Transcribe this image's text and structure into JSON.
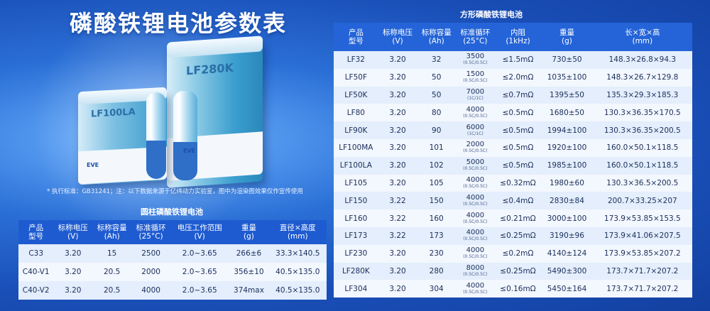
{
  "title": "磷酸铁锂电池参数表",
  "footnote": "* 执行标准：GB31241；注：以下数据来源于亿纬动力实验室，图中为渲染图效果仅作宣传使用",
  "illustration": {
    "big_cell_label": "LF280K",
    "small_cell_label": "LF100LA",
    "brand": "EVE"
  },
  "cylindrical": {
    "title": "圆柱磷酸铁锂电池",
    "headers": [
      [
        "产品",
        "型号"
      ],
      [
        "标称电压",
        "(V)"
      ],
      [
        "标称容量",
        "(Ah)"
      ],
      [
        "标准循环",
        "(25°C)"
      ],
      [
        "电压工作范围",
        "(V)"
      ],
      [
        "重量",
        "(g)"
      ],
      [
        "直径×高度",
        "(mm)"
      ]
    ],
    "rows": [
      [
        "C33",
        "3.20",
        "15",
        "2500",
        "2.0~3.65",
        "266±6",
        "33.3×140.5"
      ],
      [
        "C40-V1",
        "3.20",
        "20.5",
        "2000",
        "2.0~3.65",
        "356±10",
        "40.5×135.0"
      ],
      [
        "C40-V2",
        "3.20",
        "20.5",
        "4000",
        "2.0~3.65",
        "374max",
        "40.5×135.0"
      ]
    ]
  },
  "prismatic": {
    "title": "方形磷酸铁锂电池",
    "headers": [
      [
        "产品",
        "型号"
      ],
      [
        "标称电压",
        "(V)"
      ],
      [
        "标称容量",
        "(Ah)"
      ],
      [
        "标准循环",
        "(25°C)"
      ],
      [
        "内阻",
        "(1kHz)"
      ],
      [
        "重量",
        "(g)"
      ],
      [
        "长×宽×高",
        "(mm)"
      ]
    ],
    "rows": [
      {
        "model": "LF32",
        "voltage": "3.20",
        "capacity": "32",
        "cycle": "3500",
        "cycle_rate": "(0.5C/0.5C)",
        "resistance": "≤1.5mΩ",
        "weight": "730±50",
        "size": "148.3×26.8×94.3"
      },
      {
        "model": "LF50F",
        "voltage": "3.20",
        "capacity": "50",
        "cycle": "1500",
        "cycle_rate": "(0.5C/0.5C)",
        "resistance": "≤2.0mΩ",
        "weight": "1035±100",
        "size": "148.3×26.7×129.8"
      },
      {
        "model": "LF50K",
        "voltage": "3.20",
        "capacity": "50",
        "cycle": "7000",
        "cycle_rate": "(1C/1C)",
        "resistance": "≤0.7mΩ",
        "weight": "1395±50",
        "size": "135.3×29.3×185.3"
      },
      {
        "model": "LF80",
        "voltage": "3.20",
        "capacity": "80",
        "cycle": "4000",
        "cycle_rate": "(0.5C/0.5C)",
        "resistance": "≤0.5mΩ",
        "weight": "1680±50",
        "size": "130.3×36.35×170.5"
      },
      {
        "model": "LF90K",
        "voltage": "3.20",
        "capacity": "90",
        "cycle": "6000",
        "cycle_rate": "(1C/1C)",
        "resistance": "≤0.5mΩ",
        "weight": "1994±100",
        "size": "130.3×36.35×200.5"
      },
      {
        "model": "LF100MA",
        "voltage": "3.20",
        "capacity": "101",
        "cycle": "2000",
        "cycle_rate": "(0.5C/0.5C)",
        "resistance": "≤0.5mΩ",
        "weight": "1920±100",
        "size": "160.0×50.1×118.5"
      },
      {
        "model": "LF100LA",
        "voltage": "3.20",
        "capacity": "102",
        "cycle": "5000",
        "cycle_rate": "(0.5C/0.5C)",
        "resistance": "≤0.5mΩ",
        "weight": "1985±100",
        "size": "160.0×50.1×118.5"
      },
      {
        "model": "LF105",
        "voltage": "3.20",
        "capacity": "105",
        "cycle": "4000",
        "cycle_rate": "(0.5C/0.5C)",
        "resistance": "≤0.32mΩ",
        "weight": "1980±60",
        "size": "130.3×36.5×200.5"
      },
      {
        "model": "LF150",
        "voltage": "3.22",
        "capacity": "150",
        "cycle": "4000",
        "cycle_rate": "(0.5C/0.5C)",
        "resistance": "≤0.4mΩ",
        "weight": "2830±84",
        "size": "200.7×33.25×207"
      },
      {
        "model": "LF160",
        "voltage": "3.22",
        "capacity": "160",
        "cycle": "4000",
        "cycle_rate": "(0.5C/0.5C)",
        "resistance": "≤0.21mΩ",
        "weight": "3000±100",
        "size": "173.9×53.85×153.5"
      },
      {
        "model": "LF173",
        "voltage": "3.22",
        "capacity": "173",
        "cycle": "4000",
        "cycle_rate": "(0.5C/0.5C)",
        "resistance": "≤0.25mΩ",
        "weight": "3190±96",
        "size": "173.9×41.06×207.5"
      },
      {
        "model": "LF230",
        "voltage": "3.20",
        "capacity": "230",
        "cycle": "4000",
        "cycle_rate": "(0.5C/0.5C)",
        "resistance": "≤0.2mΩ",
        "weight": "4140±124",
        "size": "173.9×53.85×207.2"
      },
      {
        "model": "LF280K",
        "voltage": "3.20",
        "capacity": "280",
        "cycle": "8000",
        "cycle_rate": "(0.5C/0.5C)",
        "resistance": "≤0.25mΩ",
        "weight": "5490±300",
        "size": "173.7×71.7×207.2"
      },
      {
        "model": "LF304",
        "voltage": "3.20",
        "capacity": "304",
        "cycle": "4000",
        "cycle_rate": "(0.5C/0.5C)",
        "resistance": "≤0.16mΩ",
        "weight": "5450±164",
        "size": "173.7×71.7×207.2"
      }
    ]
  }
}
